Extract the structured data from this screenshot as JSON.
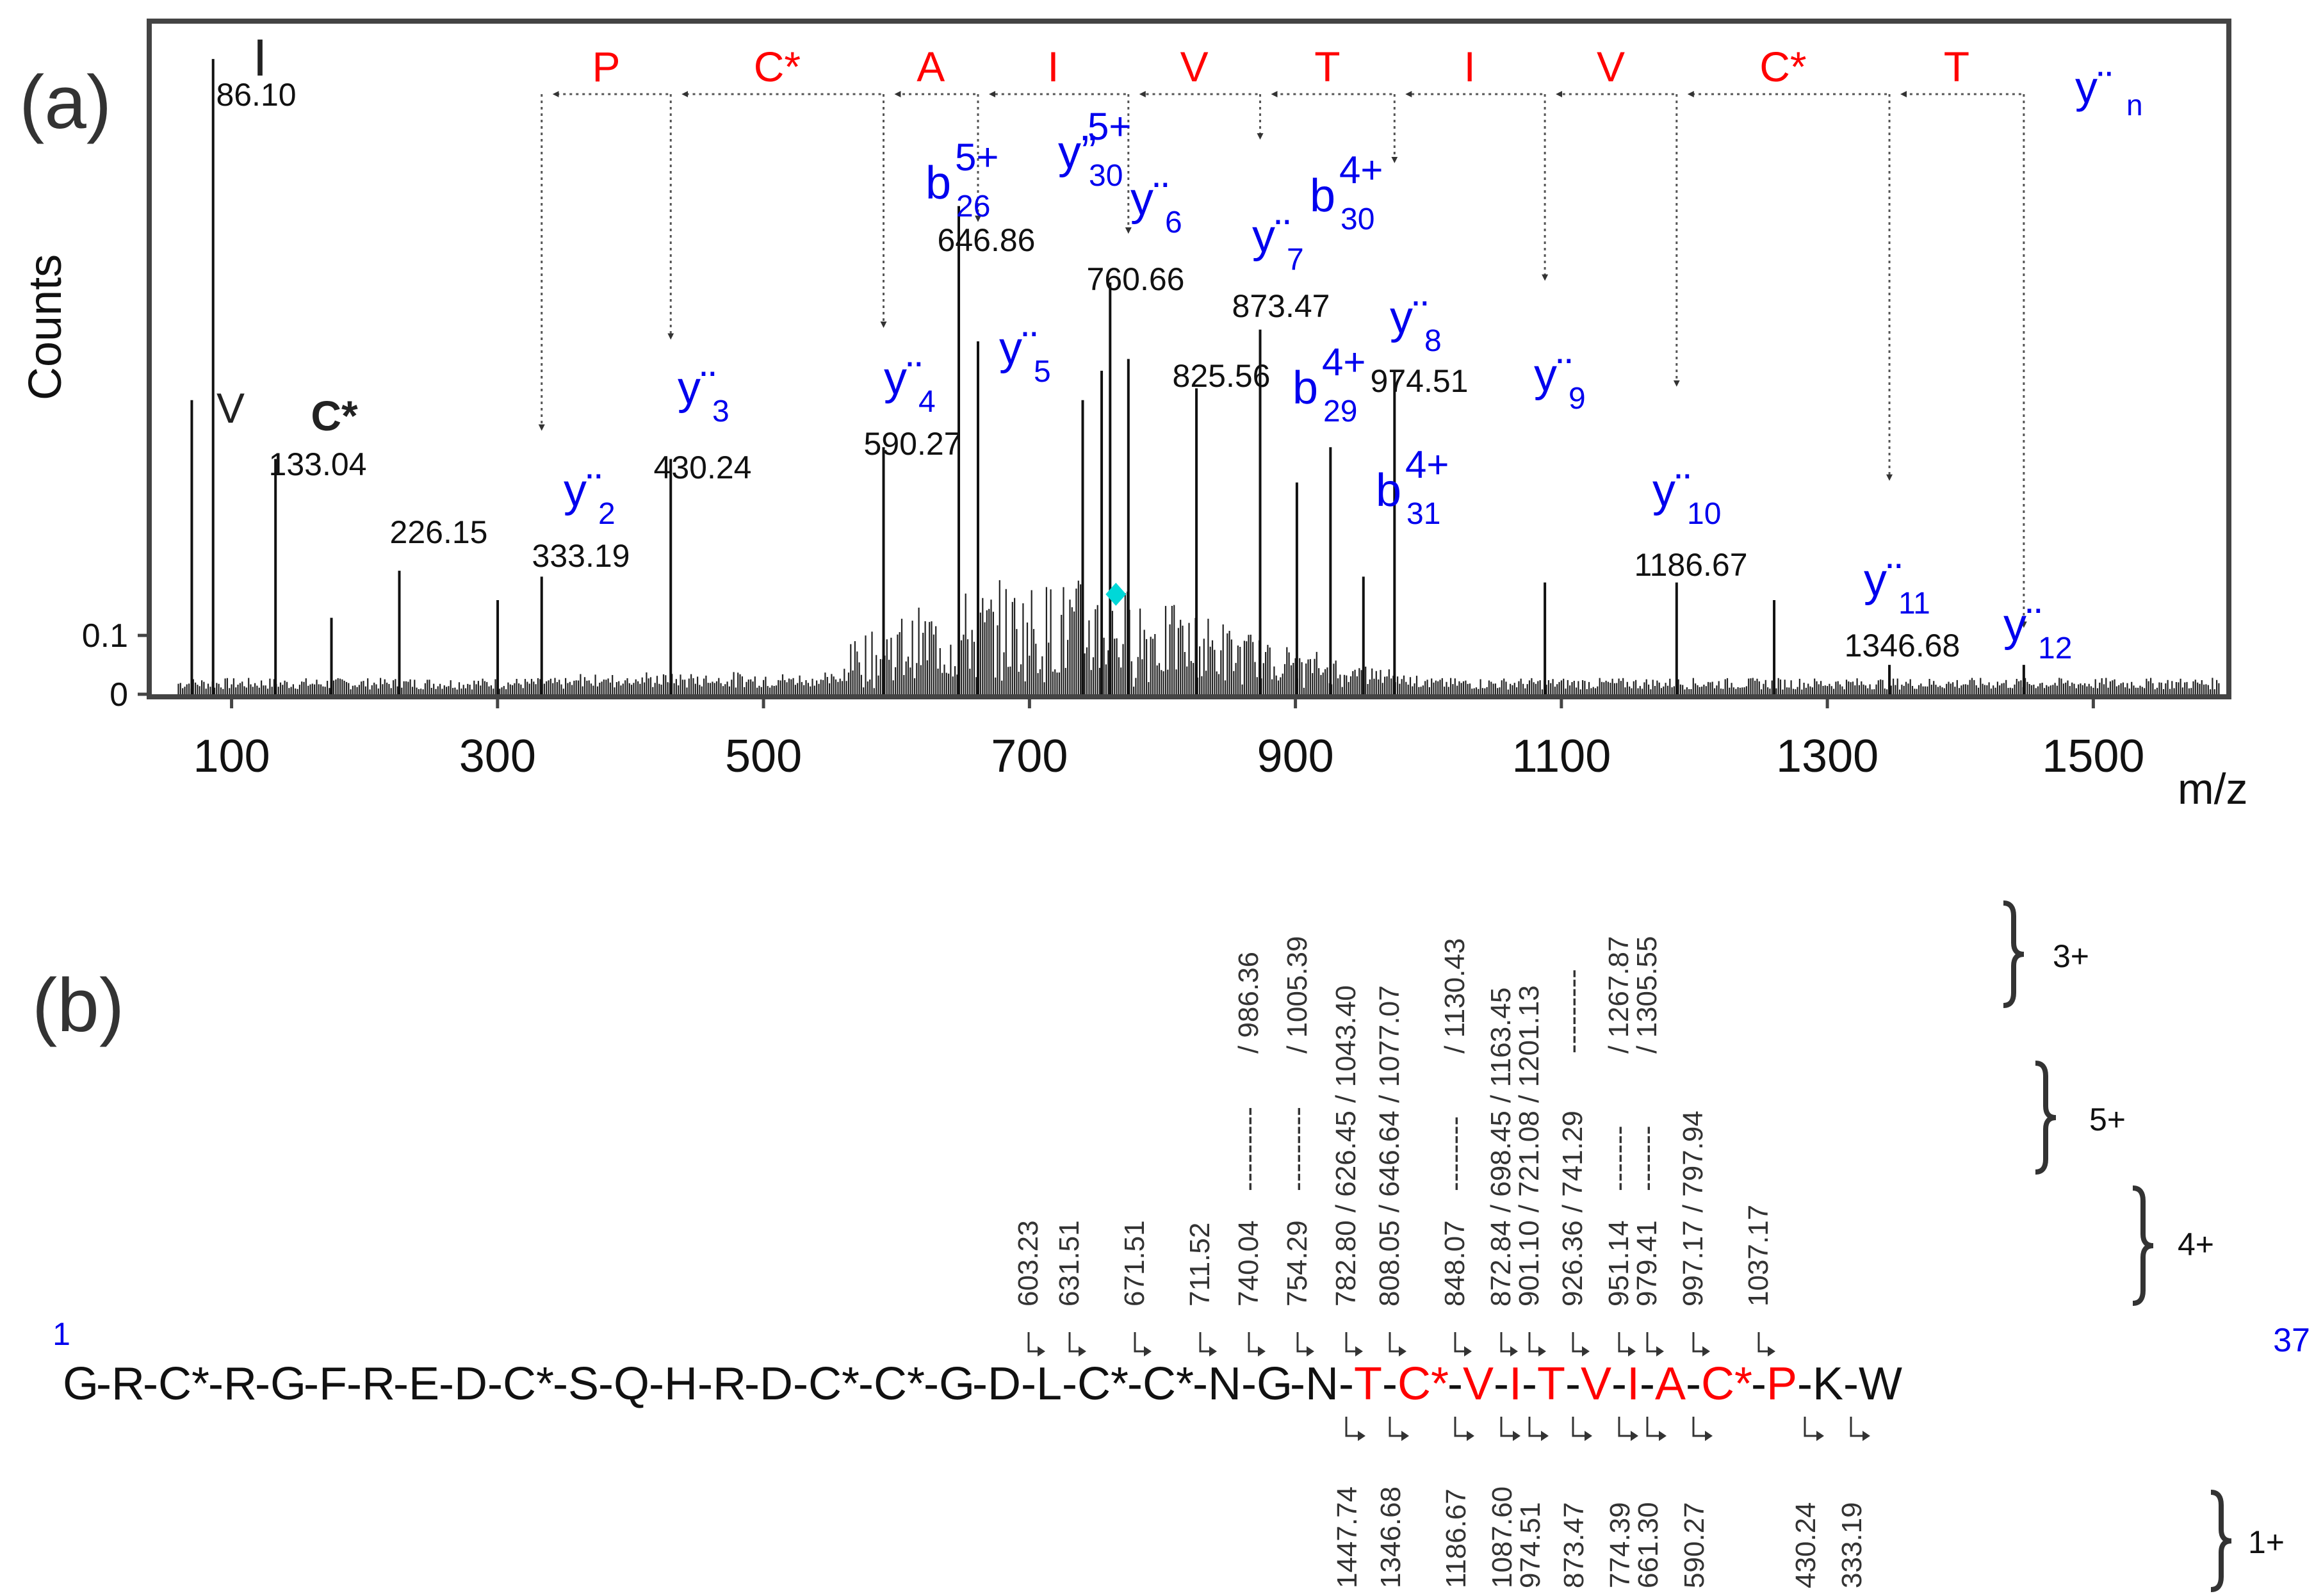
{
  "panel_a_label": "(a)",
  "panel_b_label": "(b)",
  "colors": {
    "red": "#ff0000",
    "blue": "#0000ee",
    "black": "#111111",
    "cyan": "#00d8d8",
    "frame": "#444444"
  },
  "chart_data": {
    "type": "bar",
    "title": "",
    "xlabel": "m/z",
    "ylabel": "Counts",
    "xlim": [
      40,
      1600
    ],
    "ylim": [
      0,
      1.14
    ],
    "x_ticks": [
      100,
      300,
      500,
      700,
      900,
      1100,
      1300,
      1500
    ],
    "y_ticks": [
      0,
      0.1
    ],
    "y_tick_labels": [
      "0",
      "0.1"
    ],
    "grid": false,
    "peaks": [
      {
        "mz": 70.07,
        "intensity": 0.5
      },
      {
        "mz": 86.1,
        "intensity": 1.08
      },
      {
        "mz": 133.04,
        "intensity": 0.4
      },
      {
        "mz": 175.1,
        "intensity": 0.13
      },
      {
        "mz": 226.15,
        "intensity": 0.21
      },
      {
        "mz": 300.1,
        "intensity": 0.16
      },
      {
        "mz": 333.19,
        "intensity": 0.2
      },
      {
        "mz": 430.24,
        "intensity": 0.4
      },
      {
        "mz": 590.27,
        "intensity": 0.42
      },
      {
        "mz": 646.86,
        "intensity": 0.83
      },
      {
        "mz": 661.3,
        "intensity": 0.6
      },
      {
        "mz": 740.04,
        "intensity": 0.5
      },
      {
        "mz": 754.29,
        "intensity": 0.55
      },
      {
        "mz": 760.66,
        "intensity": 0.7
      },
      {
        "mz": 774.39,
        "intensity": 0.57
      },
      {
        "mz": 825.56,
        "intensity": 0.52
      },
      {
        "mz": 873.47,
        "intensity": 0.62
      },
      {
        "mz": 901.1,
        "intensity": 0.36
      },
      {
        "mz": 926.36,
        "intensity": 0.42
      },
      {
        "mz": 951.14,
        "intensity": 0.2
      },
      {
        "mz": 974.51,
        "intensity": 0.55
      },
      {
        "mz": 1087.6,
        "intensity": 0.19
      },
      {
        "mz": 1186.67,
        "intensity": 0.19
      },
      {
        "mz": 1260.0,
        "intensity": 0.16
      },
      {
        "mz": 1346.68,
        "intensity": 0.05
      },
      {
        "mz": 1447.74,
        "intensity": 0.05
      }
    ],
    "peak_labels": [
      {
        "mz": 86.1,
        "text": "86.10"
      },
      {
        "mz": 133.04,
        "text": "133.04"
      },
      {
        "mz": 226.15,
        "text": "226.15"
      },
      {
        "mz": 333.19,
        "text": "333.19"
      },
      {
        "mz": 430.24,
        "text": "430.24"
      },
      {
        "mz": 590.27,
        "text": "590.27"
      },
      {
        "mz": 646.86,
        "text": "646.86"
      },
      {
        "mz": 760.66,
        "text": "760.66"
      },
      {
        "mz": 825.56,
        "text": "825.56"
      },
      {
        "mz": 873.47,
        "text": "873.47"
      },
      {
        "mz": 974.51,
        "text": "974.51"
      },
      {
        "mz": 1186.67,
        "text": "1186.67"
      },
      {
        "mz": 1346.68,
        "text": "1346.68"
      }
    ],
    "immonium_labels": [
      {
        "mz": 70.07,
        "text": "V"
      },
      {
        "mz": 86.1,
        "text": "I"
      },
      {
        "mz": 133.04,
        "text": "C*"
      }
    ],
    "y_ion_labels": [
      {
        "mz": 333.19,
        "base": "y",
        "dots": "¨",
        "sub": "2"
      },
      {
        "mz": 430.24,
        "base": "y",
        "dots": "¨",
        "sub": "3"
      },
      {
        "mz": 590.27,
        "base": "y",
        "dots": "¨",
        "sub": "4"
      },
      {
        "mz": 661.3,
        "base": "y",
        "dots": "¨",
        "sub": "5"
      },
      {
        "mz": 774.39,
        "base": "y",
        "dots": "¨",
        "sub": "6"
      },
      {
        "mz": 873.47,
        "base": "y",
        "dots": "¨",
        "sub": "7"
      },
      {
        "mz": 974.51,
        "base": "y",
        "dots": "¨",
        "sub": "8"
      },
      {
        "mz": 1087.6,
        "base": "y",
        "dots": "¨",
        "sub": "9"
      },
      {
        "mz": 1186.67,
        "base": "y",
        "dots": "¨",
        "sub": "10"
      },
      {
        "mz": 1346.68,
        "base": "y",
        "dots": "¨",
        "sub": "11"
      },
      {
        "mz": 1447.74,
        "base": "y",
        "dots": "¨",
        "sub": "12"
      }
    ],
    "b_ion_labels": [
      {
        "mz": 646.86,
        "base": "b",
        "sub": "26",
        "sup": "5+"
      },
      {
        "mz": 740.04,
        "base": "y”",
        "sub": "30",
        "sup": "5+"
      },
      {
        "mz": 901.1,
        "base": "b",
        "sub": "29",
        "sup": "4+"
      },
      {
        "mz": 926.36,
        "base": "b",
        "sub": "30",
        "sup": "4+"
      },
      {
        "mz": 951.14,
        "base": "b",
        "sub": "31",
        "sup": "4+"
      }
    ],
    "ladder": {
      "residues": [
        "P",
        "C*",
        "A",
        "I",
        "V",
        "T",
        "I",
        "V",
        "C*",
        "T"
      ],
      "boundaries_mz": [
        333.19,
        430.24,
        590.27,
        661.3,
        774.39,
        873.47,
        974.51,
        1087.6,
        1186.67,
        1346.68,
        1447.74
      ],
      "end_label": {
        "base": "y",
        "dots": "¨",
        "sub": "n"
      }
    },
    "precursor_marker_mz": 765
  },
  "sequence": {
    "start_index": "1",
    "end_index": "37",
    "residues": [
      {
        "aa": "G",
        "red": false
      },
      {
        "aa": "R",
        "red": false
      },
      {
        "aa": "C*",
        "red": false
      },
      {
        "aa": "R",
        "red": false
      },
      {
        "aa": "G",
        "red": false
      },
      {
        "aa": "F",
        "red": false
      },
      {
        "aa": "R",
        "red": false
      },
      {
        "aa": "E",
        "red": false
      },
      {
        "aa": "D",
        "red": false
      },
      {
        "aa": "C*",
        "red": false
      },
      {
        "aa": "S",
        "red": false
      },
      {
        "aa": "Q",
        "red": false
      },
      {
        "aa": "H",
        "red": false
      },
      {
        "aa": "R",
        "red": false
      },
      {
        "aa": "D",
        "red": false
      },
      {
        "aa": "C*",
        "red": false
      },
      {
        "aa": "C*",
        "red": false
      },
      {
        "aa": "G",
        "red": false
      },
      {
        "aa": "D",
        "red": false
      },
      {
        "aa": "L",
        "red": false
      },
      {
        "aa": "C*",
        "red": false
      },
      {
        "aa": "C*",
        "red": false
      },
      {
        "aa": "N",
        "red": false
      },
      {
        "aa": "G",
        "red": false
      },
      {
        "aa": "N",
        "red": false
      },
      {
        "aa": "T",
        "red": true
      },
      {
        "aa": "C*",
        "red": true
      },
      {
        "aa": "V",
        "red": true
      },
      {
        "aa": "I",
        "red": true
      },
      {
        "aa": "T",
        "red": true
      },
      {
        "aa": "V",
        "red": true
      },
      {
        "aa": "I",
        "red": true
      },
      {
        "aa": "A",
        "red": true
      },
      {
        "aa": "C*",
        "red": true
      },
      {
        "aa": "P",
        "red": true
      },
      {
        "aa": "K",
        "red": false
      },
      {
        "aa": "W",
        "red": false
      }
    ],
    "b_fragments": [
      {
        "after": 19,
        "text": "603.23"
      },
      {
        "after": 20,
        "text": "631.51"
      },
      {
        "after": 21,
        "text": "671.51"
      },
      {
        "after": 22,
        "text": "711.52"
      },
      {
        "after": 23,
        "text": "740.04",
        "ext5": "---------",
        "ext3": "/ 986.36"
      },
      {
        "after": 24,
        "text": "754.29",
        "ext5": "---------",
        "ext3": "/ 1005.39"
      },
      {
        "after": 25,
        "text": "782.80 / 626.45 / 1043.40"
      },
      {
        "after": 26,
        "text": "808.05 / 646.64 / 1077.07"
      },
      {
        "after": 27,
        "text": "848.07",
        "ext5": "--------",
        "ext3": "/ 1130.43"
      },
      {
        "after": 28,
        "text": "872.84 / 698.45 / 1163.45"
      },
      {
        "after": 29,
        "text": "901.10 / 721.08 / 1201.13"
      },
      {
        "after": 30,
        "text": "926.36 / 741.29",
        "ext3": "---------"
      },
      {
        "after": 31,
        "text": "951.14",
        "ext5": "-------",
        "ext3": "/ 1267.87"
      },
      {
        "after": 32,
        "text": "979.41",
        "ext5": "-------",
        "ext3": "/ 1305.55"
      },
      {
        "after": 33,
        "text": "997.17 / 797.94"
      },
      {
        "after": 34,
        "text": "1037.17"
      }
    ],
    "y_fragments": [
      {
        "after": 25,
        "text": "1447.74"
      },
      {
        "after": 26,
        "text": "1346.68"
      },
      {
        "after": 27,
        "text": "1186.67"
      },
      {
        "after": 28,
        "text": "1087.60"
      },
      {
        "after": 29,
        "text": "974.51"
      },
      {
        "after": 30,
        "text": "873.47"
      },
      {
        "after": 31,
        "text": "774.39"
      },
      {
        "after": 32,
        "text": "661.30"
      },
      {
        "after": 33,
        "text": "590.27"
      },
      {
        "after": 35,
        "text": "430.24"
      },
      {
        "after": 36,
        "text": "333.19"
      }
    ],
    "charge_labels": [
      "3+",
      "5+",
      "4+",
      "1+"
    ]
  }
}
